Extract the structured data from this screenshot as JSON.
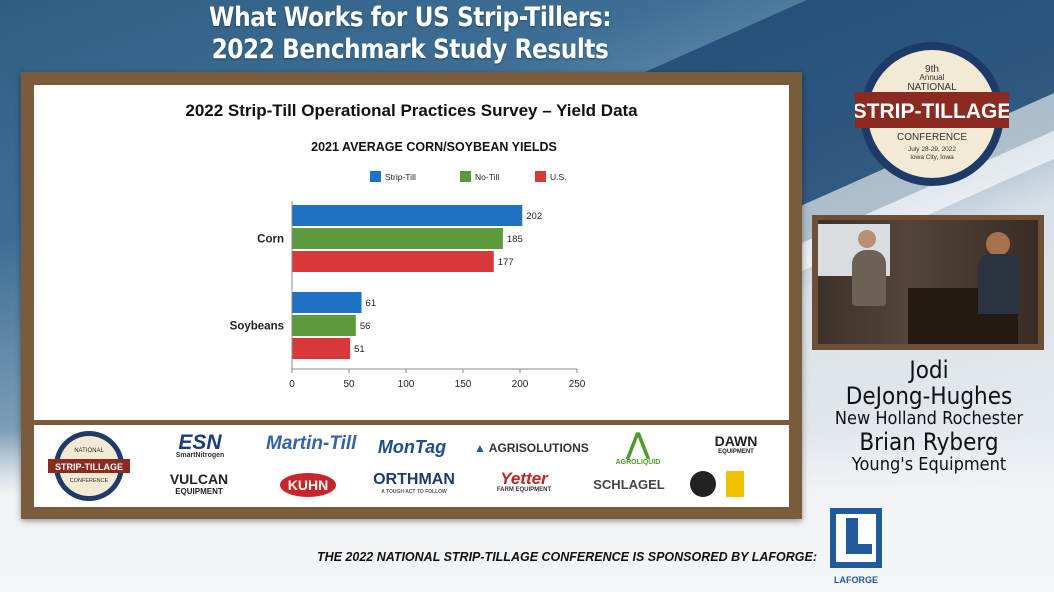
{
  "slide": {
    "title_line1": "What Works for US Strip-Tillers:",
    "title_line2": "2022 Benchmark Study Results"
  },
  "chart_data": {
    "type": "bar",
    "orientation": "horizontal",
    "title": "2022 Strip-Till Operational Practices Survey – Yield Data",
    "subtitle": "2021 AVERAGE CORN/SOYBEAN YIELDS",
    "categories": [
      "Corn",
      "Soybeans"
    ],
    "series": [
      {
        "name": "Strip-Till",
        "color": "#1f72c4",
        "values": [
          202,
          61
        ]
      },
      {
        "name": "No-Till",
        "color": "#5a9a3c",
        "values": [
          185,
          56
        ]
      },
      {
        "name": "U.S.",
        "color": "#d8383a",
        "values": [
          177,
          51
        ]
      }
    ],
    "xlim": [
      0,
      250
    ],
    "xticks": [
      "0",
      "50",
      "100",
      "150",
      "200",
      "250"
    ],
    "legend_position": "top",
    "grid": false
  },
  "badge": {
    "edition": "9th",
    "annual": "Annual",
    "national": "NATIONAL",
    "name": "STRIP-TILLAGE",
    "conference": "CONFERENCE",
    "dates": "July 28-29, 2022",
    "place": "Iowa City, Iowa"
  },
  "speakers": {
    "first_name": "Jodi",
    "last_name": "DeJong-Hughes",
    "company1": "New Holland Rochester",
    "second": "Brian Ryberg",
    "company2": "Young's Equipment"
  },
  "sponsors": {
    "esn": "ESN",
    "esn_sub": "SmartNitrogen",
    "vulcan": "VULCAN",
    "vulcan_sub": "EQUIPMENT",
    "martin": "Martin-Till",
    "kuhn": "KUHN",
    "montag": "MonTag",
    "orthman": "ORTHMAN",
    "orthman_sub": "A TOUGH ACT TO FOLLOW",
    "agrisolutions": "AGRISOLUTIONS",
    "yetter": "Yetter",
    "yetter_sub": "FARM EQUIPMENT",
    "agroliquid": "AGROLIQUID",
    "schlagel": "SCHLAGEL",
    "dawn": "DAWN",
    "dawn_sub": "EQUIPMENT"
  },
  "footer": {
    "text": "THE 2022 NATIONAL STRIP-TILLAGE CONFERENCE IS SPONSORED BY LAFORGE:",
    "laforge": "LAFORGE"
  }
}
